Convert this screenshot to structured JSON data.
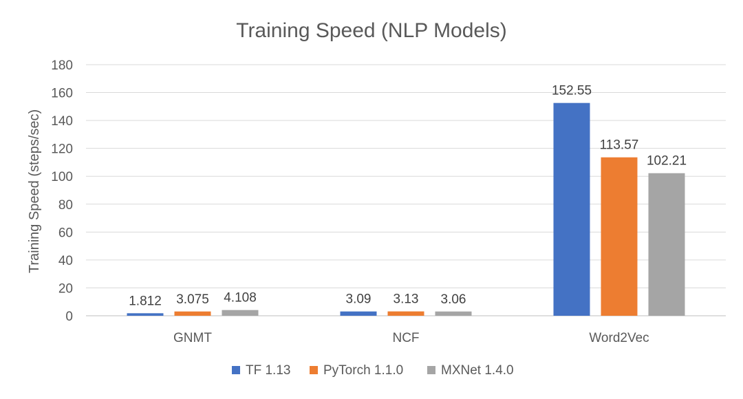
{
  "chart_data": {
    "type": "bar",
    "title": "Training Speed (NLP Models)",
    "xlabel": "",
    "ylabel": "Training Speed (steps/sec)",
    "categories": [
      "GNMT",
      "NCF",
      "Word2Vec"
    ],
    "series": [
      {
        "name": "TF 1.13",
        "color": "#4472C4",
        "values": [
          1.812,
          3.09,
          152.55
        ],
        "labels": [
          "1.812",
          "3.09",
          "152.55"
        ]
      },
      {
        "name": "PyTorch 1.1.0",
        "color": "#ED7D31",
        "values": [
          3.075,
          3.13,
          113.57
        ],
        "labels": [
          "3.075",
          "3.13",
          "113.57"
        ]
      },
      {
        "name": "MXNet 1.4.0",
        "color": "#A5A5A5",
        "values": [
          4.108,
          3.06,
          102.21
        ],
        "labels": [
          "4.108",
          "3.06",
          "102.21"
        ]
      }
    ],
    "ylim": [
      0,
      180
    ],
    "yticks": [
      0,
      20,
      40,
      60,
      80,
      100,
      120,
      140,
      160,
      180
    ],
    "grid": true,
    "legend": "bottom-center"
  }
}
